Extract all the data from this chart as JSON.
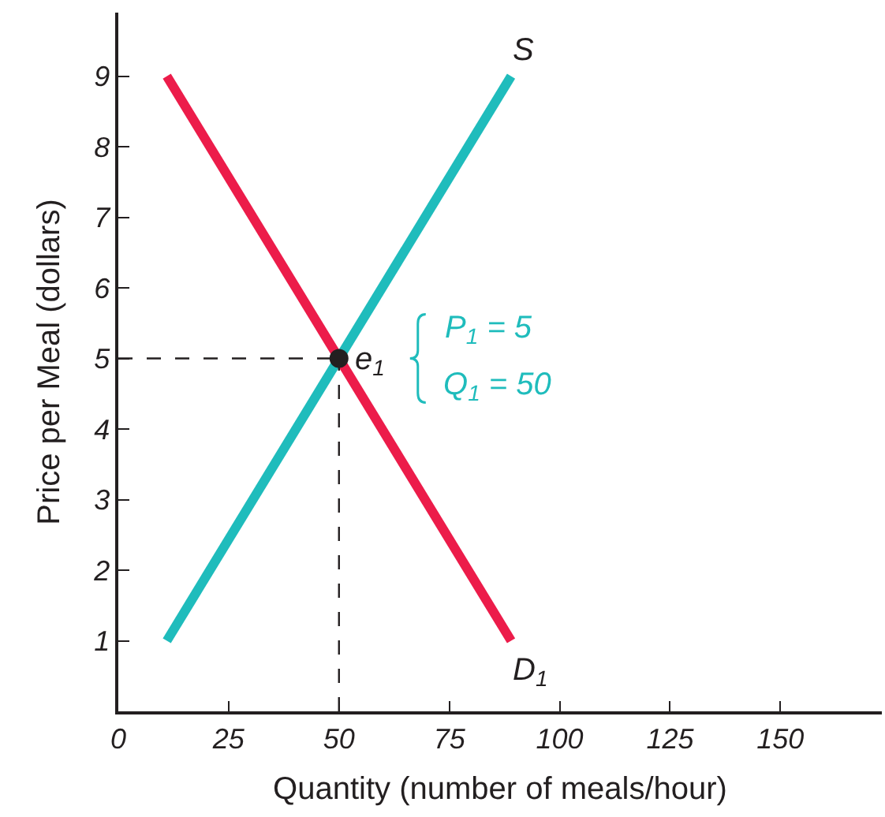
{
  "chart_data": {
    "type": "line",
    "xlabel": "Quantity (number of meals/hour)",
    "ylabel": "Price per Meal (dollars)",
    "xlim": [
      0,
      173
    ],
    "ylim": [
      0,
      9.9
    ],
    "xticks": [
      0,
      25,
      50,
      75,
      100,
      125,
      150
    ],
    "yticks": [
      1,
      2,
      3,
      4,
      5,
      6,
      7,
      8,
      9
    ],
    "series": [
      {
        "color": "#1fbcbc",
        "x": [
          11,
          89
        ],
        "values": [
          1,
          9
        ]
      },
      {
        "color": "#ec1c4a",
        "x": [
          11,
          89
        ],
        "values": [
          9,
          1
        ]
      },
      {
        "type": "line",
        "color": "#231f20",
        "line_style": "dashed",
        "x": [
          0,
          50
        ],
        "values": [
          5,
          5
        ]
      },
      {
        "type": "line",
        "color": "#231f20",
        "line_style": "dashed",
        "x": [
          50,
          50
        ],
        "values": [
          0,
          5
        ]
      },
      {
        "type": "scatter",
        "color": "#231f20",
        "marker": "circle",
        "x": [
          50
        ],
        "values": [
          5
        ]
      }
    ],
    "annotations": [
      "S",
      "D$_{1}$",
      {
        "text": "e$_{1}$",
        "x": 50,
        "y": 5
      },
      "P$_{1}$ = 5",
      "Q$_{1}$ = 50"
    ]
  }
}
